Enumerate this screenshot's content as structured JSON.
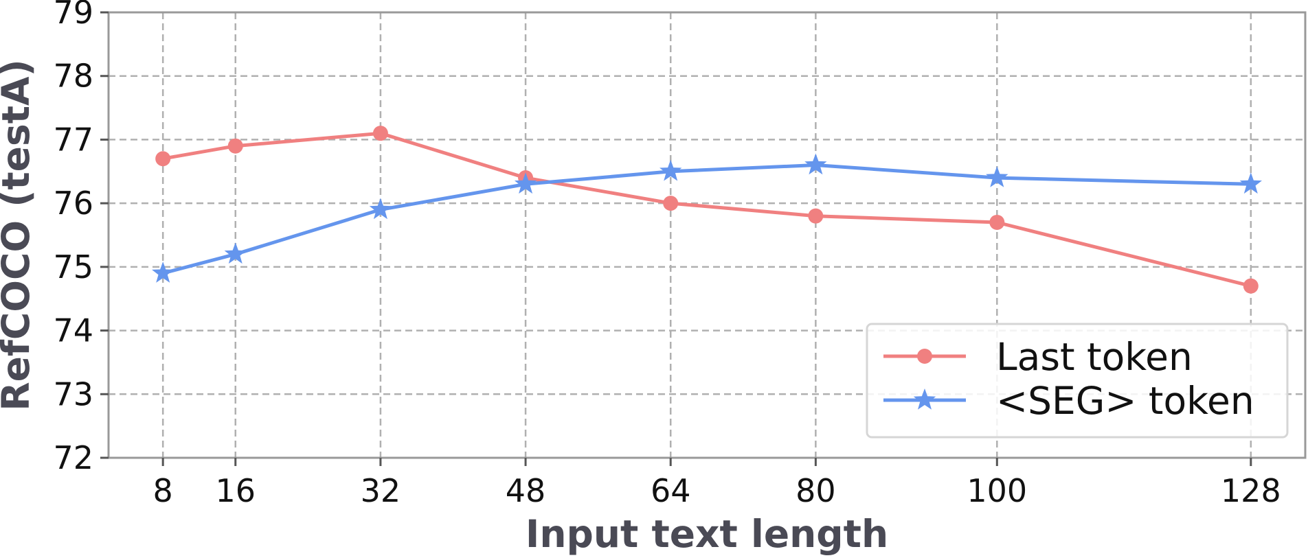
{
  "chart_data": {
    "type": "line",
    "title": "",
    "xlabel": "Input text length",
    "ylabel": "RefCOCO (testA)",
    "x": [
      8,
      16,
      32,
      48,
      64,
      80,
      100,
      128
    ],
    "x_tick_labels": [
      "8",
      "16",
      "32",
      "48",
      "64",
      "80",
      "100",
      "128"
    ],
    "xlim": [
      2,
      134
    ],
    "ylim": [
      72,
      79
    ],
    "y_ticks": [
      72,
      73,
      74,
      75,
      76,
      77,
      78,
      79
    ],
    "grid": true,
    "legend_position": "lower-right",
    "series": [
      {
        "name": "Last token",
        "marker": "circle",
        "color": "#f08080",
        "values": [
          76.7,
          76.9,
          77.1,
          76.4,
          76.0,
          75.8,
          75.7,
          74.7
        ]
      },
      {
        "name": "<SEG> token",
        "marker": "star",
        "color": "#6495ed",
        "values": [
          74.9,
          75.2,
          75.9,
          76.3,
          76.5,
          76.6,
          76.4,
          76.3
        ]
      }
    ]
  }
}
